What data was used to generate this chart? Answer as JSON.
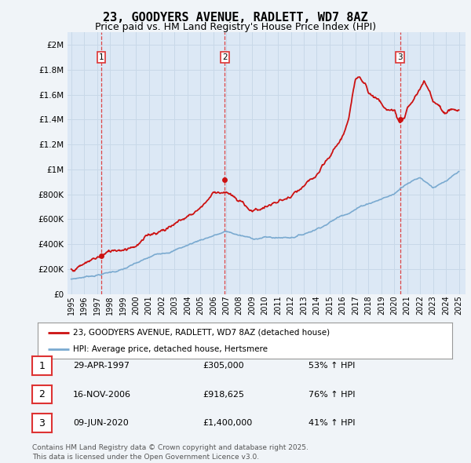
{
  "title": "23, GOODYERS AVENUE, RADLETT, WD7 8AZ",
  "subtitle": "Price paid vs. HM Land Registry's House Price Index (HPI)",
  "title_fontsize": 11,
  "subtitle_fontsize": 9,
  "background_color": "#f0f4f8",
  "plot_background": "#dce8f5",
  "grid_color": "#c8d8e8",
  "hpi_line_color": "#7aaad0",
  "price_line_color": "#cc1111",
  "vline_color": "#dd3333",
  "sale_marker_color": "#cc1111",
  "ylabel_values": [
    0,
    200000,
    400000,
    600000,
    800000,
    1000000,
    1200000,
    1400000,
    1600000,
    1800000,
    2000000
  ],
  "ylabel_labels": [
    "£0",
    "£200K",
    "£400K",
    "£600K",
    "£800K",
    "£1M",
    "£1.2M",
    "£1.4M",
    "£1.6M",
    "£1.8M",
    "£2M"
  ],
  "ylim": [
    0,
    2100000
  ],
  "xlim_start": 1994.7,
  "xlim_end": 2025.5,
  "sale_dates": [
    1997.33,
    2006.88,
    2020.44
  ],
  "sale_prices": [
    305000,
    918625,
    1400000
  ],
  "sale_labels": [
    "1",
    "2",
    "3"
  ],
  "table_rows": [
    {
      "num": "1",
      "date": "29-APR-1997",
      "price": "£305,000",
      "hpi": "53% ↑ HPI"
    },
    {
      "num": "2",
      "date": "16-NOV-2006",
      "price": "£918,625",
      "hpi": "76% ↑ HPI"
    },
    {
      "num": "3",
      "date": "09-JUN-2020",
      "price": "£1,400,000",
      "hpi": "41% ↑ HPI"
    }
  ],
  "legend_line1": "23, GOODYERS AVENUE, RADLETT, WD7 8AZ (detached house)",
  "legend_line2": "HPI: Average price, detached house, Hertsmere",
  "footer": "Contains HM Land Registry data © Crown copyright and database right 2025.\nThis data is licensed under the Open Government Licence v3.0.",
  "xtick_years": [
    1995,
    1996,
    1997,
    1998,
    1999,
    2000,
    2001,
    2002,
    2003,
    2004,
    2005,
    2006,
    2007,
    2008,
    2009,
    2010,
    2011,
    2012,
    2013,
    2014,
    2015,
    2016,
    2017,
    2018,
    2019,
    2020,
    2021,
    2022,
    2023,
    2024,
    2025
  ]
}
